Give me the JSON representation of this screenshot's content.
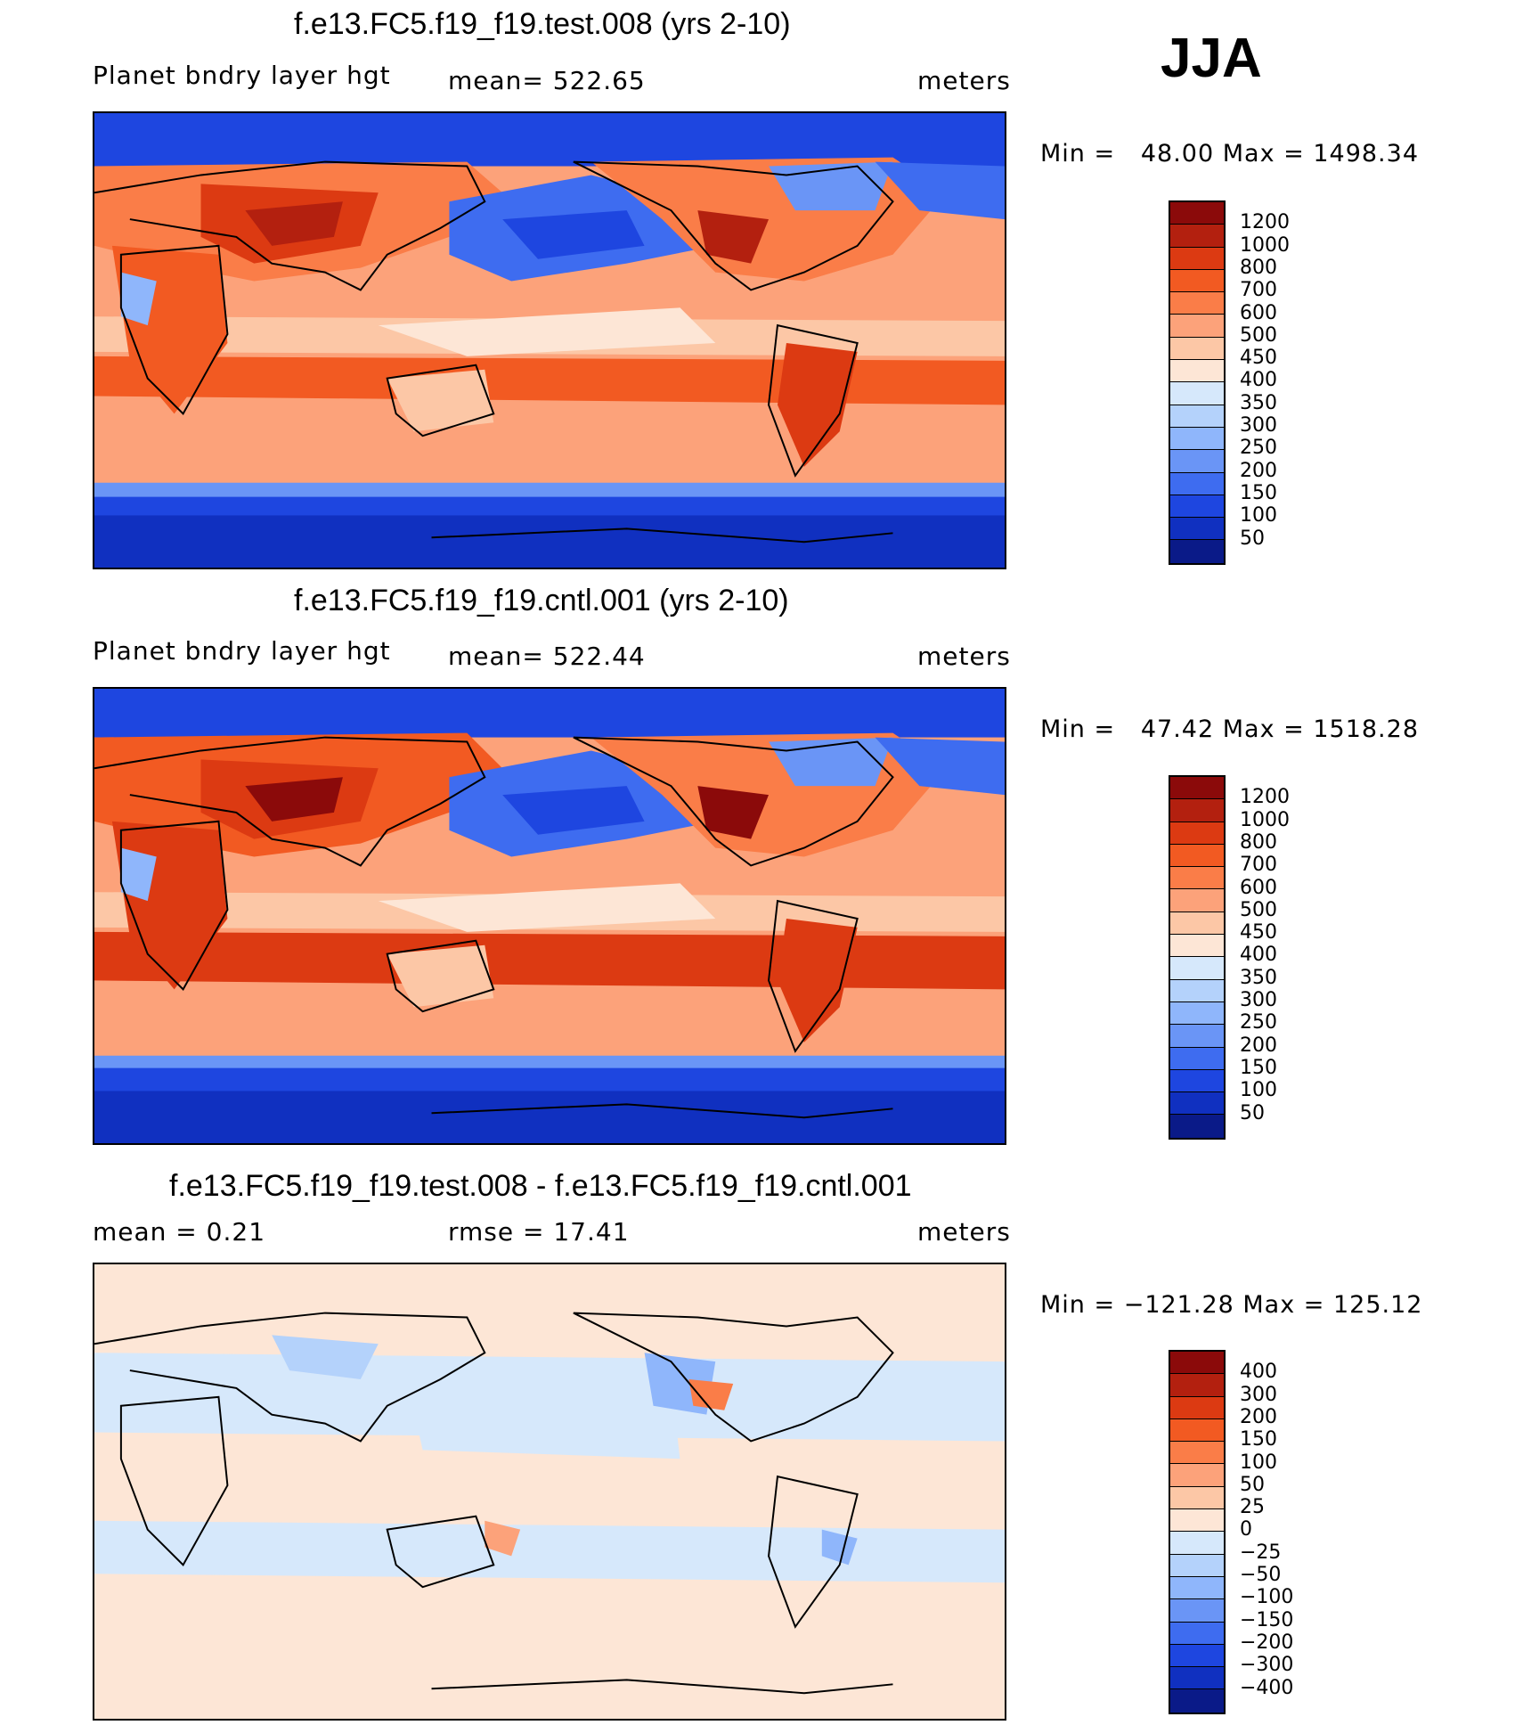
{
  "season": "JJA",
  "panels": [
    {
      "title": "f.e13.FC5.f19_f19.test.008 (yrs 2-10)",
      "left_label": "Planet bndry layer hgt",
      "center_label": "mean= 522.65",
      "right_label": "meters",
      "minmax": "Min =   48.00 Max = 1498.34"
    },
    {
      "title": "f.e13.FC5.f19_f19.cntl.001 (yrs 2-10)",
      "left_label": "Planet bndry layer hgt",
      "center_label": "mean= 522.44",
      "right_label": "meters",
      "minmax": "Min =   47.42 Max = 1518.28"
    },
    {
      "title": "f.e13.FC5.f19_f19.test.008 - f.e13.FC5.f19_f19.cntl.001",
      "left_label": "mean =    0.21",
      "center_label": "rmse =   17.41",
      "right_label": "meters",
      "minmax": "Min = −121.28 Max = 125.12"
    }
  ],
  "legend_abs": {
    "labels": [
      "1200",
      "1000",
      "800",
      "700",
      "600",
      "500",
      "450",
      "400",
      "350",
      "300",
      "250",
      "200",
      "150",
      "100",
      "50"
    ],
    "colors": [
      "#8b0a0a",
      "#b3200f",
      "#dc3a12",
      "#f25a22",
      "#fa7d48",
      "#fca27a",
      "#fcc7a6",
      "#fde6d6",
      "#d6e8fb",
      "#b4d2fb",
      "#8fb6fb",
      "#6a95f6",
      "#3e6cf0",
      "#1e46e0",
      "#1030c0",
      "#0a1a88"
    ]
  },
  "legend_diff": {
    "labels": [
      "400",
      "300",
      "200",
      "150",
      "100",
      "50",
      "25",
      "0",
      "−25",
      "−50",
      "−100",
      "−150",
      "−200",
      "−300",
      "−400"
    ],
    "colors": [
      "#8b0a0a",
      "#b3200f",
      "#dc3a12",
      "#f25a22",
      "#fa7d48",
      "#fca27a",
      "#fcc7a6",
      "#fde6d6",
      "#d6e8fb",
      "#b4d2fb",
      "#8fb6fb",
      "#6a95f6",
      "#3e6cf0",
      "#1e46e0",
      "#1030c0",
      "#0a1a88"
    ]
  }
}
